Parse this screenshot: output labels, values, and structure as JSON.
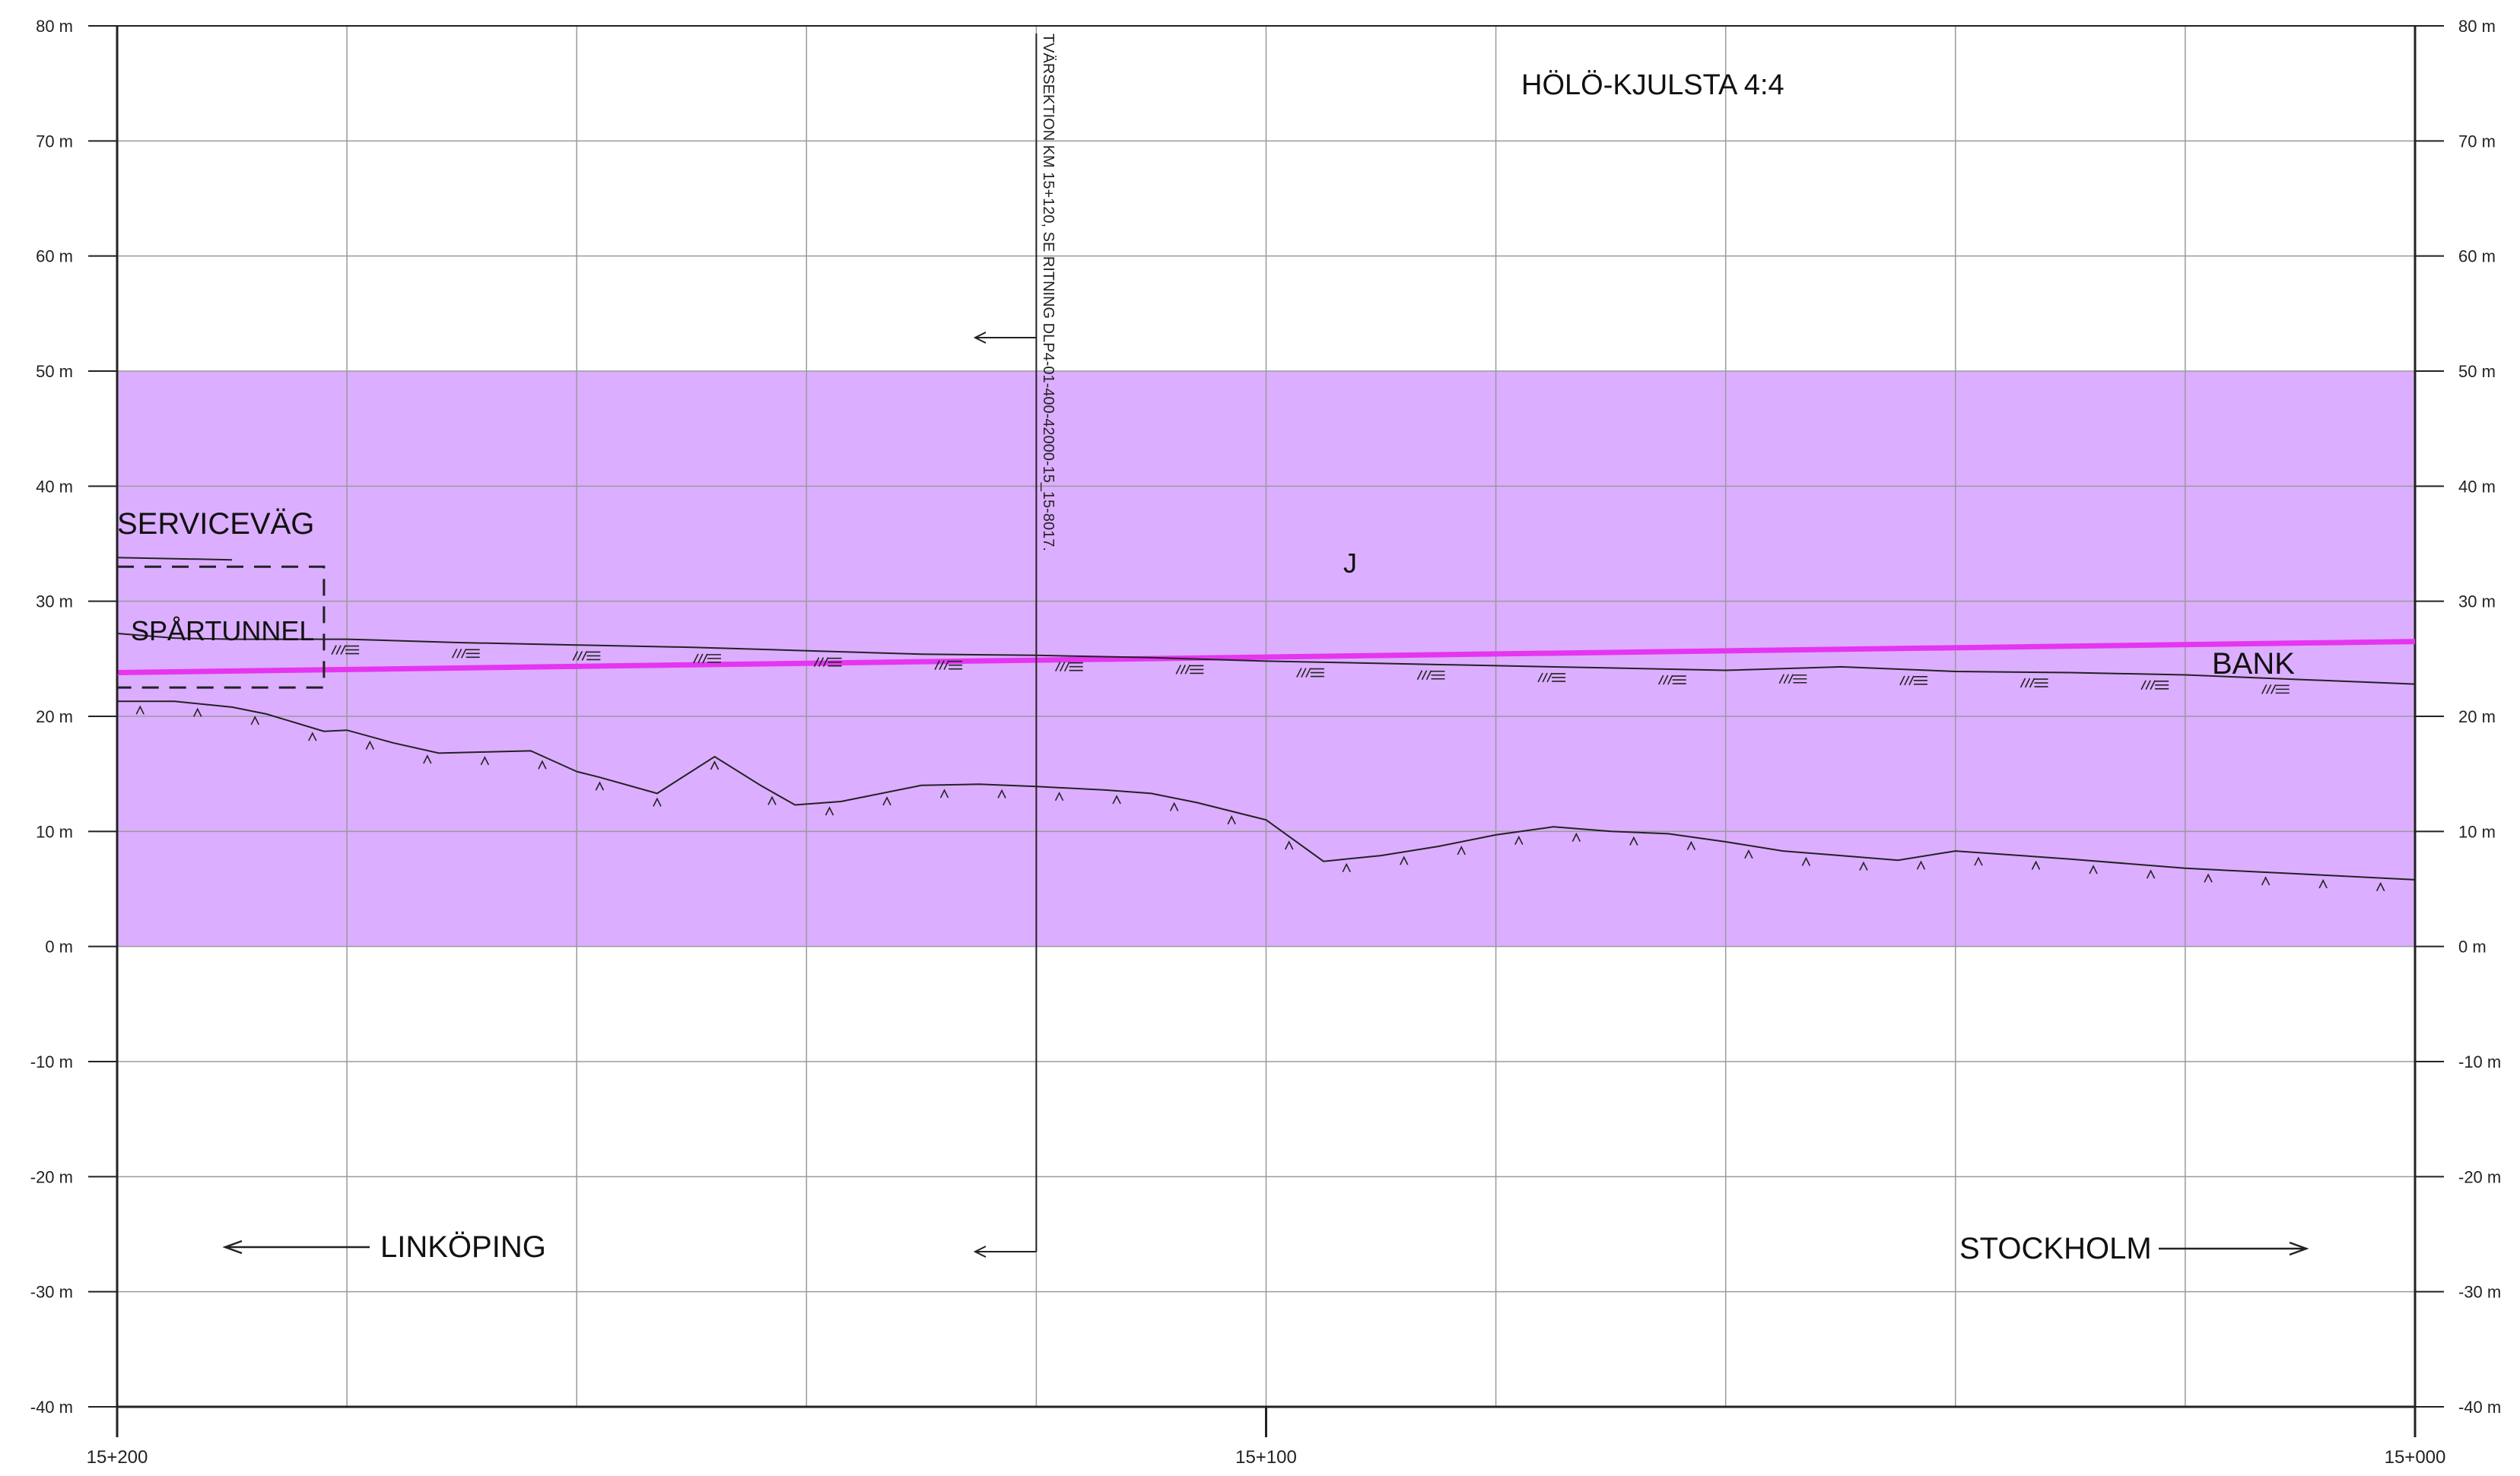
{
  "drawing": {
    "title": "HÖLÖ-KJULSTA 4:4",
    "elevation_ticks": [
      "80 m",
      "70 m",
      "60 m",
      "50 m",
      "40 m",
      "30 m",
      "20 m",
      "10 m",
      "0 m",
      "-10 m",
      "-20 m",
      "-30 m",
      "-40 m"
    ],
    "chainage_labels": [
      "15+200",
      "15+100",
      "15+000"
    ],
    "labels": {
      "servicevag": "SERVICEVÄG",
      "spartunnel": "SPÅRTUNNEL",
      "bank": "BANK",
      "j": "J",
      "linkoping": "LINKÖPING",
      "stockholm": "STOCKHOLM",
      "section_note": "TVÄRSEKTION KM 15+120, SE RITNING DLP4-01-400-42000-15_15-8017."
    },
    "colors": {
      "band_fill": "#dcaeff",
      "track_line": "#e535f0",
      "grid": "#9a9a9a",
      "ink": "#222222"
    }
  },
  "chart_data": {
    "type": "line",
    "x_axis": {
      "label": "",
      "range_chainage": [
        15200,
        15000
      ],
      "tick_labels": [
        "15+200",
        "15+100",
        "15+000"
      ]
    },
    "y_axis": {
      "label": "",
      "range": [
        -40,
        80
      ],
      "unit": "m",
      "tick_step": 10
    },
    "band": {
      "elevation_from": 0,
      "elevation_to": 50
    },
    "grid": true,
    "series": [
      {
        "name": "",
        "kind": "track-profile",
        "x": [
          15200,
          15000
        ],
        "y": [
          23.8,
          26.5
        ]
      },
      {
        "name": "",
        "kind": "ground-surface",
        "x": [
          15200,
          15195,
          15190,
          15180,
          15170,
          15160,
          15150,
          15140,
          15130,
          15120,
          15110,
          15100,
          15090,
          15080,
          15070,
          15060,
          15050,
          15040,
          15030,
          15020,
          15010,
          15000
        ],
        "y": [
          27.2,
          26.8,
          26.7,
          26.7,
          26.4,
          26.2,
          26.0,
          25.7,
          25.4,
          25.3,
          25.1,
          24.8,
          24.6,
          24.4,
          24.2,
          24.0,
          24.3,
          23.9,
          23.8,
          23.6,
          23.2,
          22.8
        ]
      },
      {
        "name": "",
        "kind": "bedrock-surface",
        "x": [
          15200,
          15195,
          15190,
          15187,
          15182,
          15180,
          15176,
          15172,
          15168,
          15164,
          15160,
          15158,
          15153,
          15148,
          15144,
          15141,
          15137,
          15130,
          15125,
          15120,
          15114,
          15110,
          15106,
          15100,
          15095,
          15090,
          15085,
          15080,
          15075,
          15070,
          15065,
          15060,
          15055,
          15050,
          15045,
          15040,
          15030,
          15020,
          15010,
          15000
        ],
        "y": [
          21.3,
          21.3,
          20.8,
          20.2,
          18.7,
          18.8,
          17.7,
          16.8,
          16.9,
          17.0,
          15.2,
          14.7,
          13.3,
          16.5,
          14.0,
          12.3,
          12.6,
          14.0,
          14.1,
          13.9,
          13.6,
          13.3,
          12.5,
          11.0,
          7.4,
          7.9,
          8.7,
          9.7,
          10.4,
          10.0,
          9.8,
          9.1,
          8.3,
          7.9,
          7.5,
          8.3,
          7.6,
          6.8,
          6.3,
          5.8
        ]
      },
      {
        "name": "",
        "kind": "serviceväg",
        "x": [
          15200,
          15190
        ],
        "y": [
          33.8,
          33.6
        ]
      }
    ],
    "rectangles": [
      {
        "label": "SPÅRTUNNEL",
        "x_from": 15200,
        "x_to": 15182,
        "elevation_from": 22.5,
        "elevation_to": 33.0,
        "style": "dashed"
      }
    ],
    "section_marker": {
      "chainage": 15120,
      "label": "TVÄRSEKTION KM 15+120, SE RITNING DLP4-01-400-42000-15_15-8017."
    }
  }
}
